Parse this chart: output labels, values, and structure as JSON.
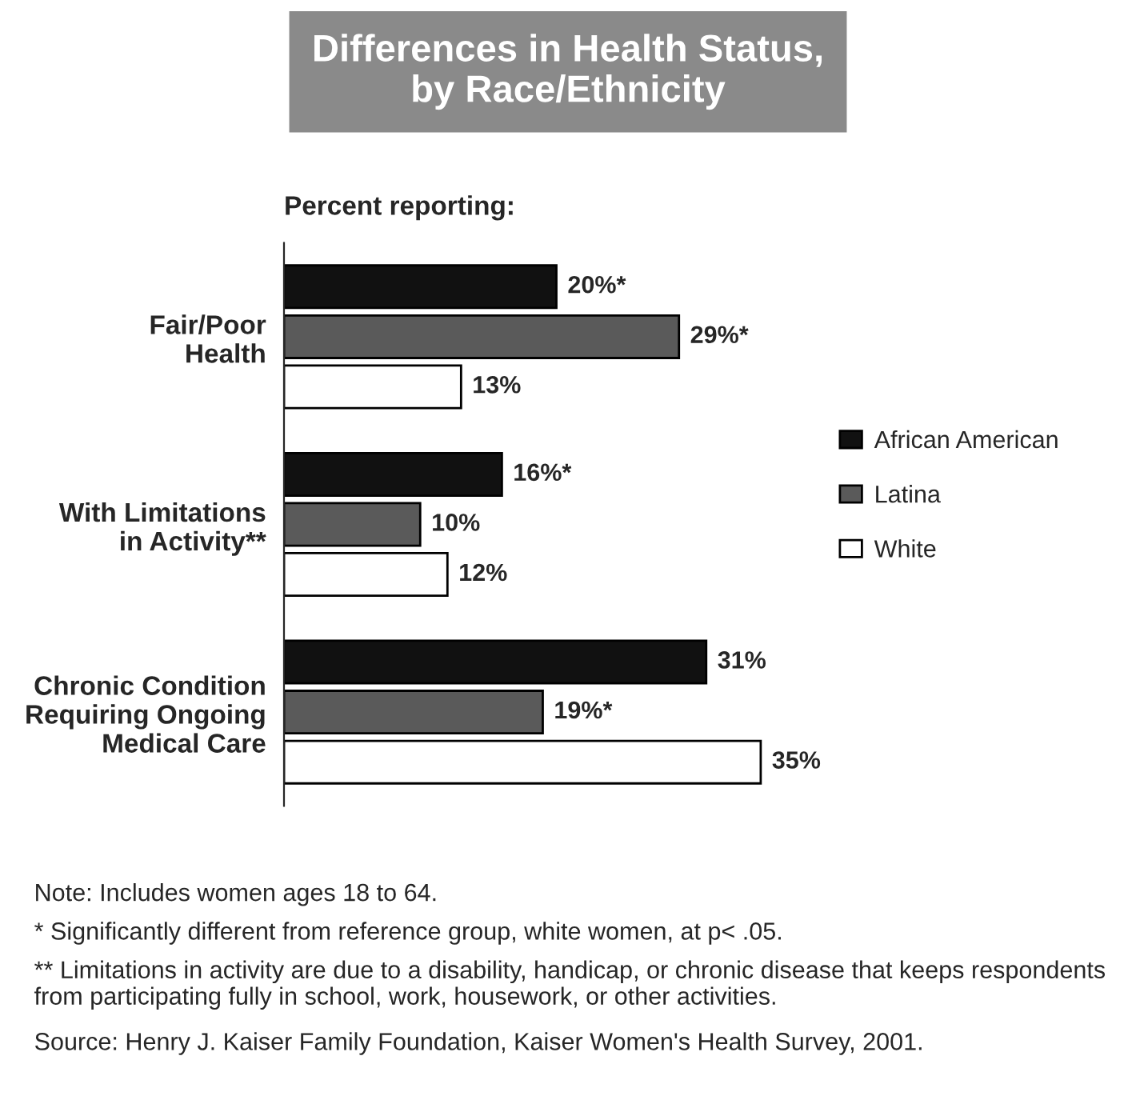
{
  "chart_data": {
    "type": "bar",
    "orientation": "horizontal",
    "title": "Differences in Health Status,\nby Race/Ethnicity",
    "subtitle": "Percent reporting:",
    "categories": [
      "Fair/Poor\nHealth",
      "With Limitations\nin Activity**",
      "Chronic Condition\nRequiring Ongoing\nMedical Care"
    ],
    "series": [
      {
        "name": "African American",
        "color": "#111111",
        "values": [
          20,
          16,
          31
        ],
        "value_labels": [
          "20%*",
          "16%*",
          "31%"
        ]
      },
      {
        "name": "Latina",
        "color": "#5a5a5a",
        "values": [
          29,
          10,
          19
        ],
        "value_labels": [
          "29%*",
          "10%",
          "19%*"
        ]
      },
      {
        "name": "White",
        "color": "#ffffff",
        "values": [
          13,
          12,
          35
        ],
        "value_labels": [
          "13%",
          "12%",
          "35%"
        ]
      }
    ],
    "legend": "right",
    "grid": false,
    "annotations": [
      "Note: Includes women ages 18 to 64.",
      "* Significantly different from reference group, white women, at p< .05.",
      "** Limitations in activity are due to a disability, handicap, or chronic disease that keeps respondents from participating fully in school, work, housework, or other activities.",
      "Source: Henry J. Kaiser Family Foundation, Kaiser Women's Health Survey, 2001."
    ]
  }
}
